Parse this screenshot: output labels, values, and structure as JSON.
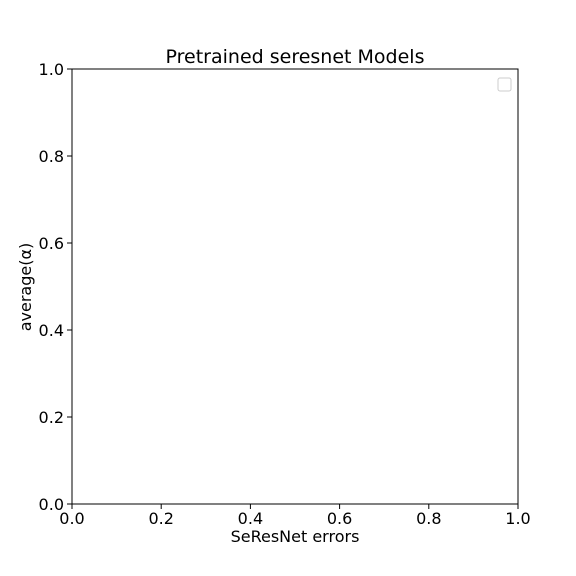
{
  "chart_data": {
    "type": "scatter",
    "title": "Pretrained seresnet Models",
    "xlabel": "SeResNet errors",
    "ylabel": "average(α)",
    "xlim": [
      0.0,
      1.0
    ],
    "ylim": [
      0.0,
      1.0
    ],
    "xticks": [
      "0.0",
      "0.2",
      "0.4",
      "0.6",
      "0.8",
      "1.0"
    ],
    "yticks": [
      "0.0",
      "0.2",
      "0.4",
      "0.6",
      "0.8",
      "1.0"
    ],
    "series": [],
    "grid": false,
    "legend": {
      "placement": "top-right",
      "entries": []
    }
  },
  "colors": {
    "axes": "#000000",
    "background": "#ffffff",
    "legend_border": "#cccccc"
  }
}
